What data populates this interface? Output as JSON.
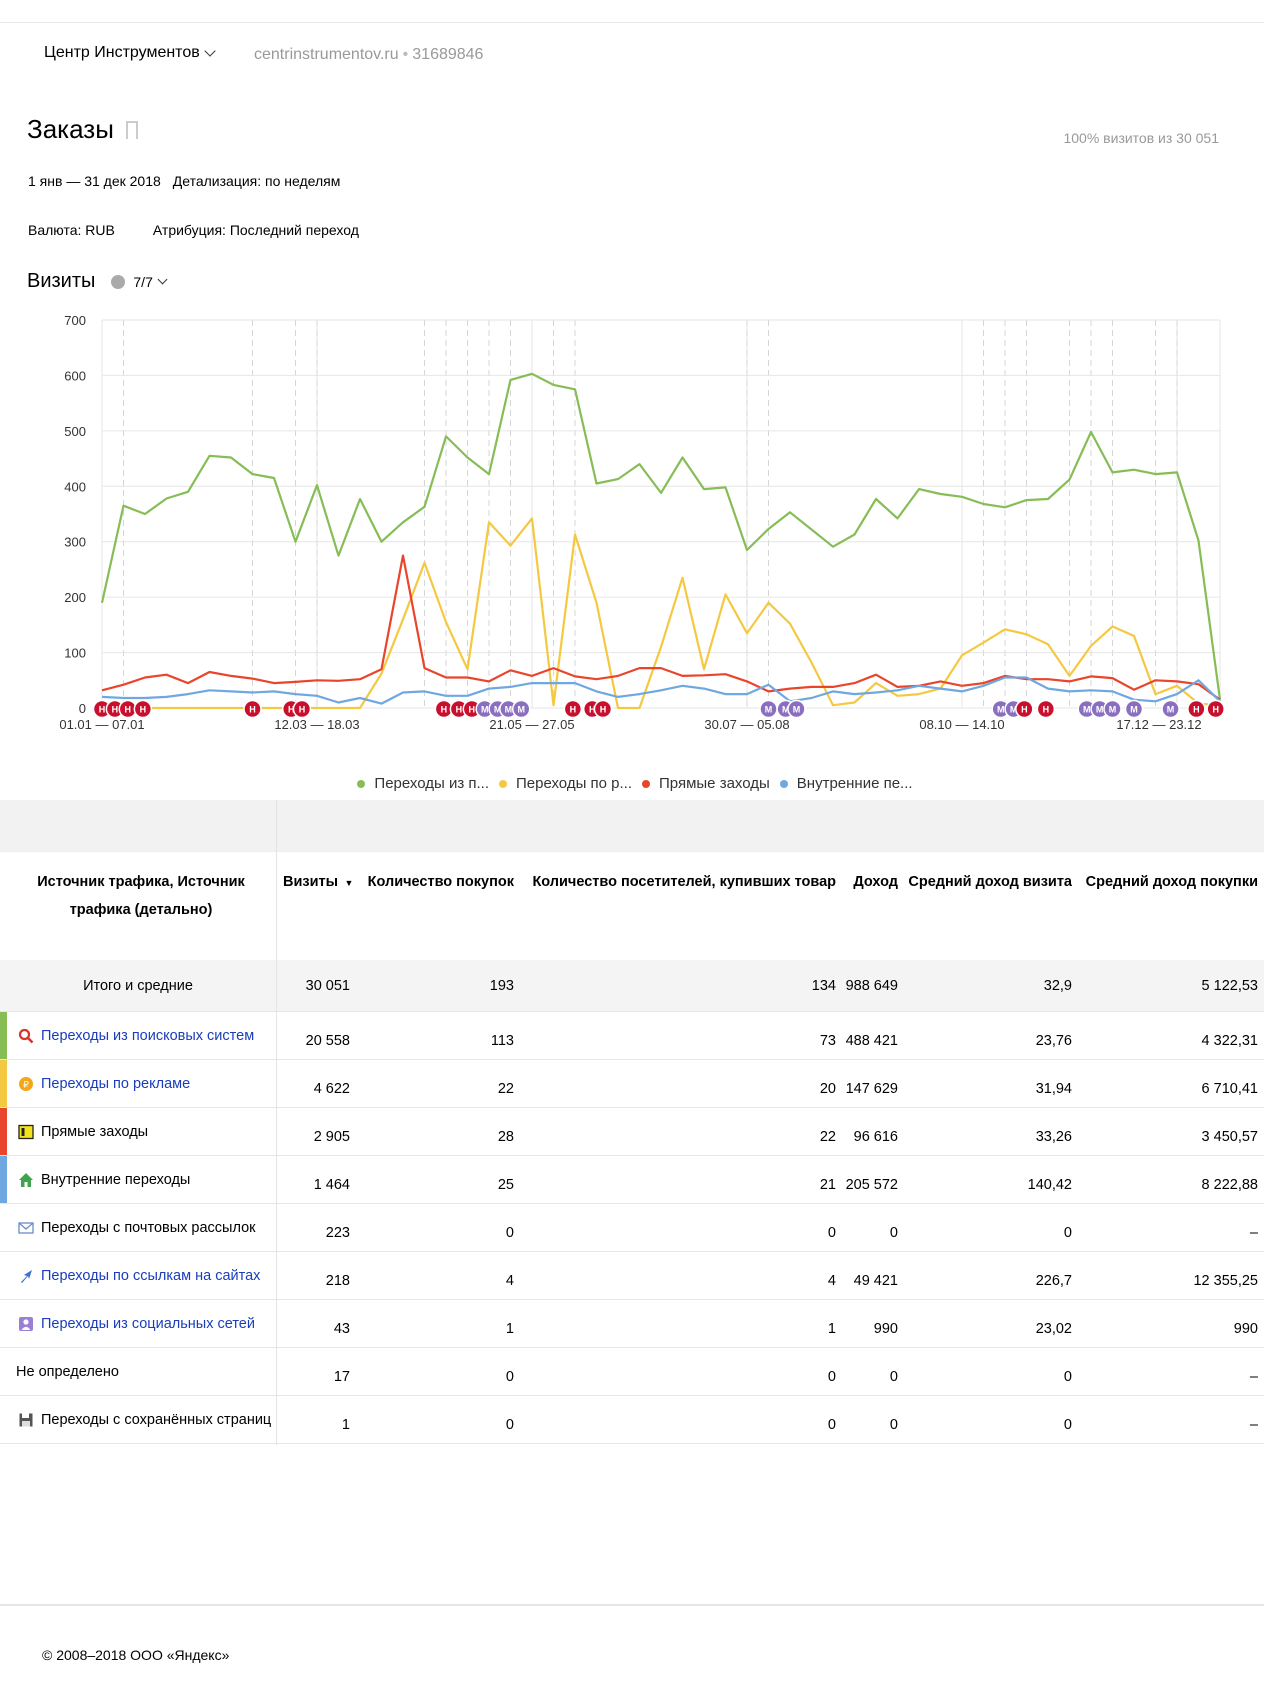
{
  "header": {
    "counter_name": "Центр Инструментов",
    "domain": "centrinstrumentov.ru",
    "counter_id": "31689846"
  },
  "report": {
    "title": "Заказы",
    "sample": "100% визитов из 30 051",
    "period": "1 янв — 31 дек 2018",
    "detail": "Детализация: по неделям",
    "currency": "Валюта: RUB",
    "attribution": "Атрибуция: Последний переход"
  },
  "chart_block": {
    "title": "Визиты",
    "notes_count": "7/7"
  },
  "colors": {
    "green": "#86bd55",
    "yellow": "#f5c842",
    "red": "#e8452c",
    "blue": "#6fa8e0",
    "note_red": "#c8102e",
    "note_purple": "#8a6fc0"
  },
  "chart_data": {
    "type": "line",
    "ylim": [
      0,
      700
    ],
    "yticks": [
      "0",
      "100",
      "200",
      "300",
      "400",
      "500",
      "600",
      "700"
    ],
    "xtick_labels": [
      "01.01 — 07.01",
      "12.03 — 18.03",
      "21.05 — 27.05",
      "30.07 — 05.08",
      "08.10 — 14.10",
      "17.12 — 23.12"
    ],
    "xtick_positions": [
      1,
      11,
      21,
      31,
      41,
      51
    ],
    "series": [
      {
        "name": "Переходы из п...",
        "color": "#86bd55",
        "values": [
          190,
          365,
          350,
          378,
          390,
          455,
          452,
          422,
          415,
          300,
          402,
          275,
          377,
          300,
          335,
          363,
          490,
          452,
          422,
          592,
          603,
          583,
          575,
          405,
          413,
          440,
          388,
          452,
          395,
          398,
          285,
          323,
          353,
          322,
          291,
          313,
          377,
          342,
          395,
          386,
          381,
          368,
          362,
          375,
          377,
          412,
          498,
          425,
          430,
          422,
          425,
          302,
          15
        ]
      },
      {
        "name": "Переходы по р...",
        "color": "#f5c842",
        "values": [
          0,
          0,
          0,
          0,
          0,
          0,
          0,
          0,
          0,
          0,
          0,
          0,
          0,
          62,
          160,
          262,
          155,
          70,
          335,
          293,
          342,
          5,
          313,
          190,
          0,
          0,
          110,
          235,
          70,
          205,
          135,
          190,
          152,
          82,
          5,
          10,
          45,
          22,
          25,
          35,
          95,
          118,
          142,
          133,
          115,
          58,
          112,
          147,
          130,
          25,
          40,
          8,
          5
        ]
      },
      {
        "name": "Прямые заходы",
        "color": "#e8452c",
        "values": [
          32,
          42,
          55,
          60,
          45,
          65,
          58,
          53,
          45,
          47,
          50,
          49,
          52,
          70,
          275,
          72,
          55,
          55,
          48,
          68,
          58,
          72,
          57,
          52,
          58,
          72,
          72,
          58,
          59,
          61,
          48,
          30,
          35,
          38,
          38,
          45,
          60,
          38,
          40,
          48,
          40,
          45,
          58,
          52,
          52,
          48,
          57,
          54,
          33,
          50,
          48,
          43,
          15
        ]
      },
      {
        "name": "Внутренние пе...",
        "color": "#6fa8e0",
        "values": [
          20,
          18,
          18,
          20,
          25,
          32,
          30,
          28,
          30,
          25,
          22,
          10,
          18,
          8,
          28,
          30,
          22,
          22,
          35,
          38,
          45,
          45,
          45,
          30,
          20,
          25,
          32,
          40,
          35,
          25,
          25,
          42,
          12,
          18,
          30,
          25,
          28,
          32,
          40,
          35,
          30,
          40,
          55,
          55,
          35,
          30,
          32,
          30,
          15,
          12,
          25,
          50,
          12
        ]
      }
    ],
    "annotations": [
      {
        "x": 1,
        "type": "Н"
      },
      {
        "x": 1.6,
        "type": "Н"
      },
      {
        "x": 2.2,
        "type": "Н"
      },
      {
        "x": 2.9,
        "type": "Н"
      },
      {
        "x": 8,
        "type": "Н"
      },
      {
        "x": 9.8,
        "type": "Н"
      },
      {
        "x": 10.3,
        "type": "Н"
      },
      {
        "x": 16.9,
        "type": "Н"
      },
      {
        "x": 17.6,
        "type": "Н"
      },
      {
        "x": 18.2,
        "type": "Н"
      },
      {
        "x": 18.8,
        "type": "М"
      },
      {
        "x": 19.4,
        "type": "М"
      },
      {
        "x": 19.9,
        "type": "М"
      },
      {
        "x": 20.5,
        "type": "М"
      },
      {
        "x": 22.9,
        "type": "Н"
      },
      {
        "x": 23.8,
        "type": "Н"
      },
      {
        "x": 24.3,
        "type": "Н"
      },
      {
        "x": 32,
        "type": "М"
      },
      {
        "x": 32.8,
        "type": "М"
      },
      {
        "x": 33.3,
        "type": "М"
      },
      {
        "x": 42.8,
        "type": "М"
      },
      {
        "x": 43.4,
        "type": "М"
      },
      {
        "x": 43.9,
        "type": "Н"
      },
      {
        "x": 44.9,
        "type": "Н"
      },
      {
        "x": 46.8,
        "type": "М"
      },
      {
        "x": 47.4,
        "type": "М"
      },
      {
        "x": 48,
        "type": "М"
      },
      {
        "x": 49,
        "type": "М"
      },
      {
        "x": 50.7,
        "type": "М"
      },
      {
        "x": 51.9,
        "type": "Н"
      },
      {
        "x": 52.8,
        "type": "Н"
      }
    ],
    "dashed_weeks": [
      2,
      8,
      10,
      11,
      16,
      17,
      18,
      19,
      20,
      22,
      23,
      31,
      32,
      42,
      43,
      44,
      46,
      47,
      48,
      50,
      51
    ]
  },
  "table": {
    "dimension_header": "Источник трафика, Источник трафика (детально)",
    "columns": [
      "Визиты",
      "Количество покупок",
      "Количество посетителей, купивших товар",
      "Доход",
      "Средний доход визита",
      "Средний доход покупки"
    ],
    "sort_arrow": "▼",
    "total": {
      "label": "Итого и средние",
      "values": [
        "30 051",
        "193",
        "134",
        "988 649",
        "32,9",
        "5 122,53"
      ]
    },
    "rows": [
      {
        "label": "Переходы из поисковых систем",
        "link": true,
        "icon": "search-icon",
        "stripe": "#86bd55",
        "values": [
          "20 558",
          "113",
          "73",
          "488 421",
          "23,76",
          "4 322,31"
        ]
      },
      {
        "label": "Переходы по рекламе",
        "link": true,
        "icon": "ad-coin-icon",
        "stripe": "#f5c842",
        "values": [
          "4 622",
          "22",
          "20",
          "147 629",
          "31,94",
          "6 710,41"
        ]
      },
      {
        "label": "Прямые заходы",
        "link": false,
        "icon": "browser-window-icon",
        "stripe": "#e8452c",
        "values": [
          "2 905",
          "28",
          "22",
          "96 616",
          "33,26",
          "3 450,57"
        ]
      },
      {
        "label": "Внутренние переходы",
        "link": false,
        "icon": "home-icon",
        "stripe": "#6fa8e0",
        "values": [
          "1 464",
          "25",
          "21",
          "205 572",
          "140,42",
          "8 222,88"
        ]
      },
      {
        "label": "Переходы с почтовых рассылок",
        "link": false,
        "icon": "envelope-icon",
        "stripe": "",
        "values": [
          "223",
          "0",
          "0",
          "0",
          "0",
          "–"
        ]
      },
      {
        "label": "Переходы по ссылкам на сайтах",
        "link": true,
        "icon": "link-arrow-icon",
        "stripe": "",
        "values": [
          "218",
          "4",
          "4",
          "49 421",
          "226,7",
          "12 355,25"
        ]
      },
      {
        "label": "Переходы из социальных сетей",
        "link": true,
        "icon": "social-person-icon",
        "stripe": "",
        "values": [
          "43",
          "1",
          "1",
          "990",
          "23,02",
          "990"
        ]
      },
      {
        "label": "Не определено",
        "link": false,
        "icon": "",
        "stripe": "",
        "values": [
          "17",
          "0",
          "0",
          "0",
          "0",
          "–"
        ]
      },
      {
        "label": "Переходы с сохранённых страниц",
        "link": false,
        "icon": "floppy-disk-icon",
        "stripe": "",
        "values": [
          "1",
          "0",
          "0",
          "0",
          "0",
          "–"
        ]
      }
    ]
  },
  "footer": {
    "copyright": "© 2008–2018 ООО «Яндекс»"
  }
}
